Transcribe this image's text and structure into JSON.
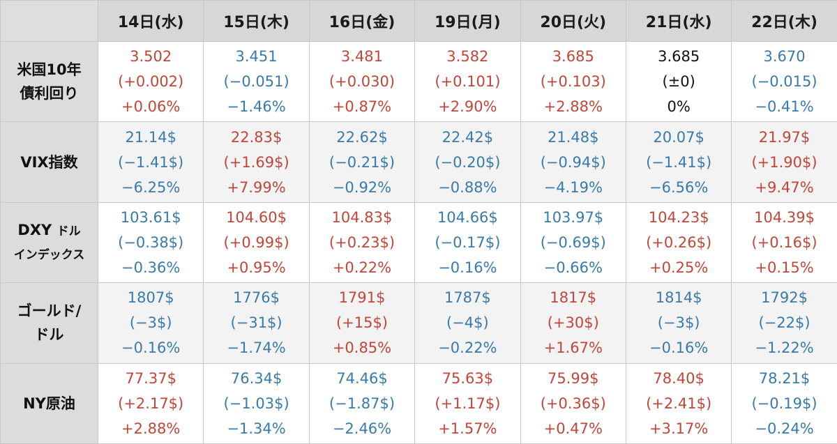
{
  "colors": {
    "up": "#c0463a",
    "down": "#3a7aa8",
    "flat": "#111111",
    "header_bg": "#d7d7d7"
  },
  "columns": [
    "14日(水)",
    "15日(木)",
    "16日(金)",
    "19日(月)",
    "20日(火)",
    "21日(水)",
    "22日(木)"
  ],
  "rows": [
    {
      "label_lines": [
        "米国10年",
        "債利回り"
      ],
      "cells": [
        {
          "dir": "up",
          "value": "3.502",
          "change": "(+0.002)",
          "pct": "+0.06%"
        },
        {
          "dir": "down",
          "value": "3.451",
          "change": "(−0.051)",
          "pct": "−1.46%"
        },
        {
          "dir": "up",
          "value": "3.481",
          "change": "(+0.030)",
          "pct": "+0.87%"
        },
        {
          "dir": "up",
          "value": "3.582",
          "change": "(+0.101)",
          "pct": "+2.90%"
        },
        {
          "dir": "up",
          "value": "3.685",
          "change": "(+0.103)",
          "pct": "+2.88%"
        },
        {
          "dir": "flat",
          "value": "3.685",
          "change": "(±0)",
          "pct": "0%"
        },
        {
          "dir": "down",
          "value": "3.670",
          "change": "(−0.015)",
          "pct": "−0.41%"
        }
      ]
    },
    {
      "label_lines": [
        "VIX指数"
      ],
      "cells": [
        {
          "dir": "down",
          "value": "21.14$",
          "change": "(−1.41$)",
          "pct": "−6.25%"
        },
        {
          "dir": "up",
          "value": "22.83$",
          "change": "(+1.69$)",
          "pct": "+7.99%"
        },
        {
          "dir": "down",
          "value": "22.62$",
          "change": "(−0.21$)",
          "pct": "−0.92%"
        },
        {
          "dir": "down",
          "value": "22.42$",
          "change": "(−0.20$)",
          "pct": "−0.88%"
        },
        {
          "dir": "down",
          "value": "21.48$",
          "change": "(−0.94$)",
          "pct": "−4.19%"
        },
        {
          "dir": "down",
          "value": "20.07$",
          "change": "(−1.41$)",
          "pct": "−6.56%"
        },
        {
          "dir": "up",
          "value": "21.97$",
          "change": "(+1.90$)",
          "pct": "+9.47%"
        }
      ]
    },
    {
      "label_lines": [
        "DXY",
        "ドル",
        "インデックス"
      ],
      "cells": [
        {
          "dir": "down",
          "value": "103.61$",
          "change": "(−0.38$)",
          "pct": "−0.36%"
        },
        {
          "dir": "up",
          "value": "104.60$",
          "change": "(+0.99$)",
          "pct": "+0.95%"
        },
        {
          "dir": "up",
          "value": "104.83$",
          "change": "(+0.23$)",
          "pct": "+0.22%"
        },
        {
          "dir": "down",
          "value": "104.66$",
          "change": "(−0.17$)",
          "pct": "−0.16%"
        },
        {
          "dir": "down",
          "value": "103.97$",
          "change": "(−0.69$)",
          "pct": "−0.66%"
        },
        {
          "dir": "up",
          "value": "104.23$",
          "change": "(+0.26$)",
          "pct": "+0.25%"
        },
        {
          "dir": "up",
          "value": "104.39$",
          "change": "(+0.16$)",
          "pct": "+0.15%"
        }
      ]
    },
    {
      "label_lines": [
        "ゴールド/",
        "ドル"
      ],
      "cells": [
        {
          "dir": "down",
          "value": "1807$",
          "change": "(−3$)",
          "pct": "−0.16%"
        },
        {
          "dir": "down",
          "value": "1776$",
          "change": "(−31$)",
          "pct": "−1.74%"
        },
        {
          "dir": "up",
          "value": "1791$",
          "change": "(+15$)",
          "pct": "+0.85%"
        },
        {
          "dir": "down",
          "value": "1787$",
          "change": "(−4$)",
          "pct": "−0.22%"
        },
        {
          "dir": "up",
          "value": "1817$",
          "change": "(+30$)",
          "pct": "+1.67%"
        },
        {
          "dir": "down",
          "value": "1814$",
          "change": "(−3$)",
          "pct": "−0.16%"
        },
        {
          "dir": "down",
          "value": "1792$",
          "change": "(−22$)",
          "pct": "−1.22%"
        }
      ]
    },
    {
      "label_lines": [
        "NY原油"
      ],
      "cells": [
        {
          "dir": "up",
          "value": "77.37$",
          "change": "(+2.17$)",
          "pct": "+2.88%"
        },
        {
          "dir": "down",
          "value": "76.34$",
          "change": "(−1.03$)",
          "pct": "−1.34%"
        },
        {
          "dir": "down",
          "value": "74.46$",
          "change": "(−1.87$)",
          "pct": "−2.46%"
        },
        {
          "dir": "up",
          "value": "75.63$",
          "change": "(+1.17$)",
          "pct": "+1.57%"
        },
        {
          "dir": "up",
          "value": "75.99$",
          "change": "(+0.36$)",
          "pct": "+0.47%"
        },
        {
          "dir": "up",
          "value": "78.40$",
          "change": "(+2.41$)",
          "pct": "+3.17%"
        },
        {
          "dir": "down",
          "value": "78.21$",
          "change": "(−0.19$)",
          "pct": "−0.24%"
        }
      ]
    }
  ]
}
